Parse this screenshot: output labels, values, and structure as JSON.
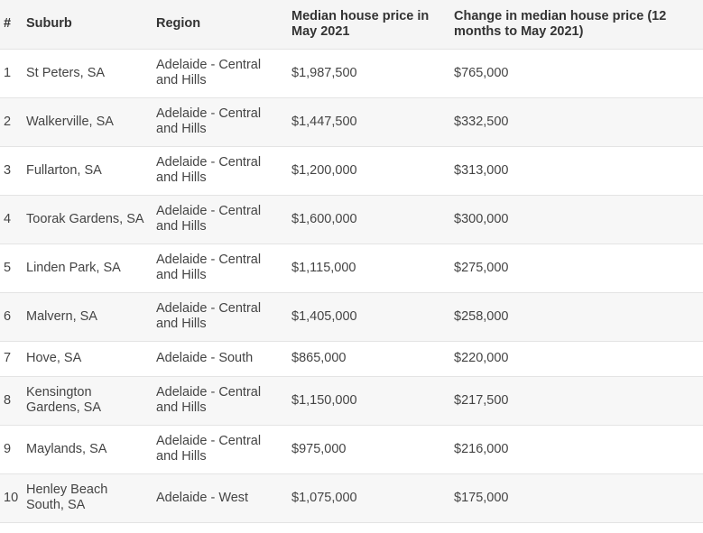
{
  "table": {
    "headers": {
      "num": "#",
      "suburb": "Suburb",
      "region": "Region",
      "price": "Median house price in May 2021",
      "change": "Change in median house price (12 months to May 2021)"
    },
    "rows": [
      {
        "num": "1",
        "suburb": "St Peters, SA",
        "region": "Adelaide - Central and Hills",
        "price": "$1,987,500",
        "change": "$765,000"
      },
      {
        "num": "2",
        "suburb": "Walkerville, SA",
        "region": "Adelaide - Central and Hills",
        "price": "$1,447,500",
        "change": "$332,500"
      },
      {
        "num": "3",
        "suburb": "Fullarton, SA",
        "region": "Adelaide - Central and Hills",
        "price": "$1,200,000",
        "change": "$313,000"
      },
      {
        "num": "4",
        "suburb": "Toorak Gardens, SA",
        "region": "Adelaide - Central and Hills",
        "price": "$1,600,000",
        "change": "$300,000"
      },
      {
        "num": "5",
        "suburb": "Linden Park, SA",
        "region": "Adelaide - Central and Hills",
        "price": "$1,115,000",
        "change": "$275,000"
      },
      {
        "num": "6",
        "suburb": "Malvern, SA",
        "region": "Adelaide - Central and Hills",
        "price": "$1,405,000",
        "change": "$258,000"
      },
      {
        "num": "7",
        "suburb": "Hove, SA",
        "region": "Adelaide - South",
        "price": "$865,000",
        "change": "$220,000"
      },
      {
        "num": "8",
        "suburb": "Kensington Gardens, SA",
        "region": "Adelaide - Central and Hills",
        "price": "$1,150,000",
        "change": "$217,500"
      },
      {
        "num": "9",
        "suburb": "Maylands, SA",
        "region": "Adelaide - Central and Hills",
        "price": "$975,000",
        "change": "$216,000"
      },
      {
        "num": "10",
        "suburb": "Henley Beach South, SA",
        "region": "Adelaide - West",
        "price": "$1,075,000",
        "change": "$175,000"
      }
    ]
  }
}
